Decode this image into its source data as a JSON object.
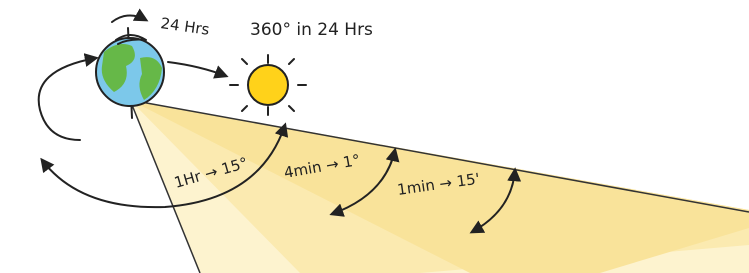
{
  "labels": {
    "rotation": "24 Hrs",
    "sun_caption": "360° in 24 Hrs",
    "hour": "1Hr → 15°",
    "minutes4": "4min → 1°",
    "minute1": "1min → 15'"
  }
}
